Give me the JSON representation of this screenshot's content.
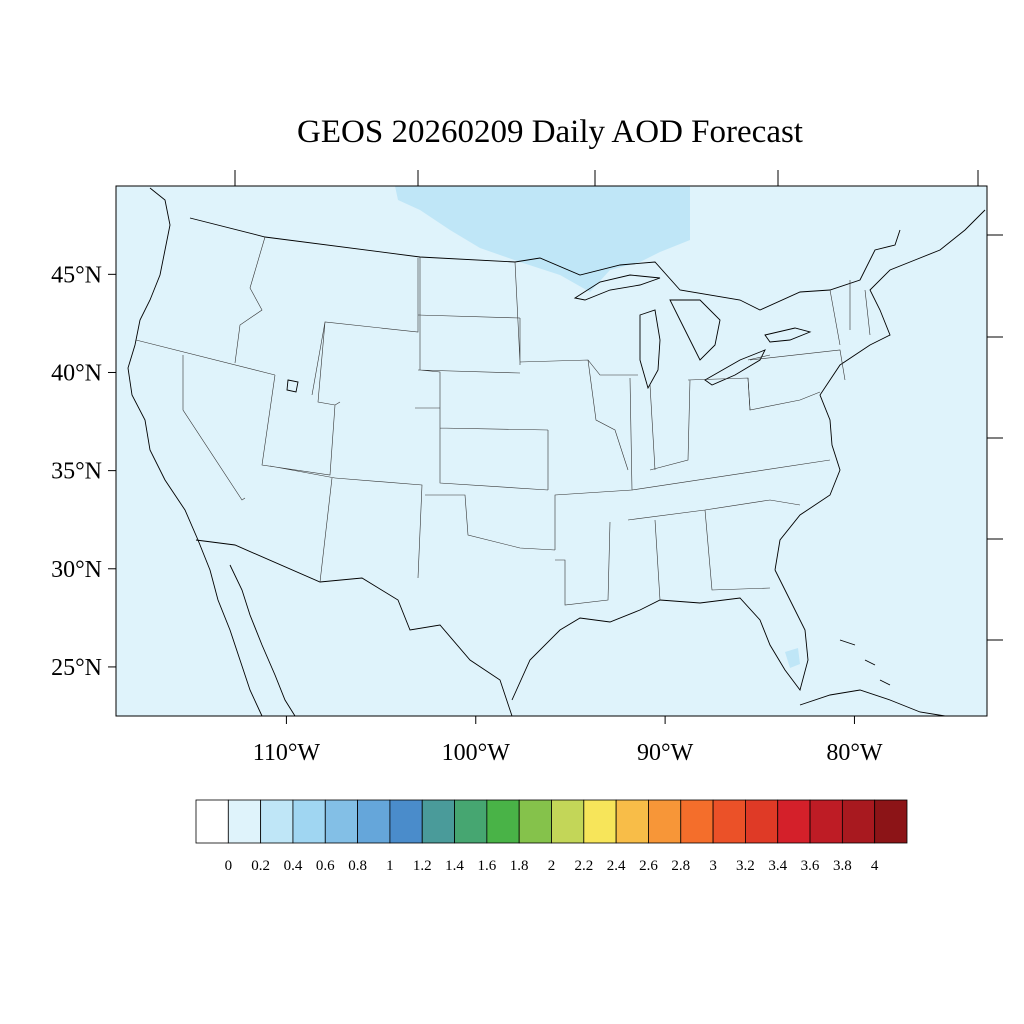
{
  "title": "GEOS 20260209 Daily AOD Forecast",
  "map": {
    "background_color": "#dff3fb",
    "plume_color": "#bfe6f7",
    "line_color": "#333333",
    "lat_range": [
      22.5,
      49.5
    ],
    "lon_range": [
      -119,
      -73
    ],
    "lat_ticks": [
      {
        "value": 45,
        "label": "45°N"
      },
      {
        "value": 40,
        "label": "40°N"
      },
      {
        "value": 35,
        "label": "35°N"
      },
      {
        "value": 30,
        "label": "30°N"
      },
      {
        "value": 25,
        "label": "25°N"
      }
    ],
    "lon_ticks": [
      {
        "value": -110,
        "label": "110°W"
      },
      {
        "value": -100,
        "label": "100°W"
      },
      {
        "value": -90,
        "label": "90°W"
      },
      {
        "value": -80,
        "label": "80°W"
      }
    ]
  },
  "colorbar": {
    "colors": [
      "#ffffff",
      "#dff3fb",
      "#bfe6f7",
      "#a0d6f2",
      "#83bfe6",
      "#65a6da",
      "#4a8ccb",
      "#4a9b9a",
      "#46a671",
      "#49b347",
      "#85c24b",
      "#c3d658",
      "#f7e55a",
      "#f8bd48",
      "#f79638",
      "#f46e2b",
      "#eb5128",
      "#df3a26",
      "#d4202a",
      "#be1c25",
      "#a8191f",
      "#8c1417"
    ],
    "labels": [
      "0",
      "0.2",
      "0.4",
      "0.6",
      "0.8",
      "1",
      "1.2",
      "1.4",
      "1.6",
      "1.8",
      "2",
      "2.2",
      "2.4",
      "2.6",
      "2.8",
      "3",
      "3.2",
      "3.4",
      "3.6",
      "3.8",
      "4"
    ]
  }
}
